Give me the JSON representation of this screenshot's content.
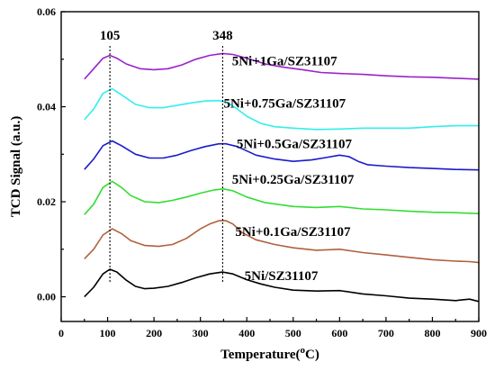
{
  "chart_data": {
    "type": "line",
    "title": "",
    "xlabel": "Temperature(",
    "xlabel_sup": "o",
    "xlabel_tail": "C)",
    "ylabel": "TCD Signal (a.u.)",
    "xlim": [
      0,
      900
    ],
    "ylim": [
      -0.0052,
      0.06
    ],
    "xticks": [
      0,
      100,
      200,
      300,
      400,
      500,
      600,
      700,
      800,
      900
    ],
    "yticks": [
      0.0,
      0.02,
      0.04,
      0.06
    ],
    "ytick_labels": [
      "0.00",
      "0.02",
      "0.04",
      "0.06"
    ],
    "peak_markers": [
      {
        "x": 105,
        "label": "105"
      },
      {
        "x": 348,
        "label": "348"
      }
    ],
    "series": [
      {
        "name": "5Ni/SZ31107",
        "color": "#000000",
        "label_x": 395,
        "label_y": 0.0035,
        "x": [
          50,
          70,
          90,
          105,
          120,
          140,
          160,
          180,
          200,
          230,
          260,
          290,
          320,
          348,
          370,
          400,
          430,
          460,
          500,
          550,
          600,
          650,
          700,
          750,
          800,
          850,
          880,
          900
        ],
        "y": [
          0.0,
          0.002,
          0.0048,
          0.0058,
          0.0052,
          0.0035,
          0.0022,
          0.0017,
          0.0018,
          0.0022,
          0.003,
          0.004,
          0.0048,
          0.0052,
          0.0048,
          0.0036,
          0.0027,
          0.002,
          0.0014,
          0.0012,
          0.0013,
          0.0006,
          0.0002,
          -0.0003,
          -0.0005,
          -0.0008,
          -0.0005,
          -0.001
        ]
      },
      {
        "name": "5Ni+0.1Ga/SZ31107",
        "color": "#b0603c",
        "label_x": 375,
        "label_y": 0.0128,
        "x": [
          50,
          70,
          90,
          110,
          130,
          150,
          180,
          210,
          240,
          270,
          300,
          320,
          340,
          355,
          370,
          390,
          420,
          460,
          500,
          550,
          600,
          650,
          700,
          750,
          800,
          850,
          880,
          900
        ],
        "y": [
          0.008,
          0.01,
          0.013,
          0.0143,
          0.0133,
          0.0118,
          0.0108,
          0.0106,
          0.011,
          0.0123,
          0.0143,
          0.0153,
          0.016,
          0.016,
          0.0153,
          0.0135,
          0.012,
          0.011,
          0.0103,
          0.0098,
          0.01,
          0.0093,
          0.0088,
          0.0083,
          0.0078,
          0.0075,
          0.0074,
          0.0072
        ]
      },
      {
        "name": "5Ni+0.25Ga/SZ31107",
        "color": "#33dd33",
        "label_x": 368,
        "label_y": 0.0238,
        "x": [
          50,
          70,
          90,
          110,
          130,
          150,
          180,
          210,
          240,
          270,
          300,
          330,
          350,
          370,
          400,
          440,
          500,
          550,
          600,
          650,
          700,
          750,
          800,
          850,
          900
        ],
        "y": [
          0.0173,
          0.0195,
          0.023,
          0.0243,
          0.023,
          0.0213,
          0.02,
          0.0198,
          0.0203,
          0.021,
          0.0218,
          0.0225,
          0.0227,
          0.0223,
          0.021,
          0.0198,
          0.019,
          0.0188,
          0.019,
          0.0185,
          0.0183,
          0.018,
          0.0178,
          0.0177,
          0.0175
        ]
      },
      {
        "name": "5Ni+0.5Ga/SZ31107",
        "color": "#1a1acc",
        "label_x": 378,
        "label_y": 0.0313,
        "x": [
          50,
          70,
          90,
          110,
          130,
          160,
          190,
          220,
          250,
          280,
          310,
          340,
          355,
          380,
          420,
          460,
          500,
          540,
          570,
          600,
          620,
          640,
          660,
          700,
          750,
          800,
          850,
          900
        ],
        "y": [
          0.0268,
          0.029,
          0.0318,
          0.0328,
          0.0318,
          0.03,
          0.0292,
          0.0292,
          0.0298,
          0.0308,
          0.0316,
          0.0322,
          0.0322,
          0.0316,
          0.0298,
          0.029,
          0.0285,
          0.0288,
          0.0293,
          0.0298,
          0.0295,
          0.0285,
          0.0278,
          0.0275,
          0.0272,
          0.027,
          0.0268,
          0.0267
        ]
      },
      {
        "name": "5Ni+0.75Ga/SZ31107",
        "color": "#33eeee",
        "label_x": 350,
        "label_y": 0.0398,
        "x": [
          50,
          70,
          90,
          110,
          130,
          160,
          190,
          220,
          250,
          280,
          310,
          340,
          360,
          380,
          400,
          430,
          460,
          500,
          550,
          600,
          650,
          700,
          750,
          800,
          850,
          900
        ],
        "y": [
          0.0373,
          0.0395,
          0.0428,
          0.0438,
          0.0425,
          0.0405,
          0.0398,
          0.0398,
          0.0403,
          0.0408,
          0.0412,
          0.0413,
          0.0408,
          0.0395,
          0.038,
          0.0365,
          0.0358,
          0.0355,
          0.0352,
          0.0353,
          0.0355,
          0.0355,
          0.0355,
          0.0358,
          0.036,
          0.036
        ]
      },
      {
        "name": "5Ni+1Ga/SZ31107",
        "color": "#9922cc",
        "label_x": 368,
        "label_y": 0.0487,
        "x": [
          50,
          70,
          90,
          105,
          120,
          140,
          170,
          200,
          230,
          260,
          290,
          320,
          348,
          370,
          400,
          440,
          480,
          520,
          560,
          600,
          650,
          700,
          750,
          800,
          850,
          900
        ],
        "y": [
          0.0458,
          0.048,
          0.0502,
          0.0508,
          0.0502,
          0.049,
          0.048,
          0.0478,
          0.048,
          0.0488,
          0.05,
          0.0508,
          0.0512,
          0.051,
          0.0502,
          0.049,
          0.0483,
          0.0478,
          0.0472,
          0.047,
          0.0468,
          0.0465,
          0.0463,
          0.0462,
          0.046,
          0.0458
        ]
      }
    ]
  }
}
